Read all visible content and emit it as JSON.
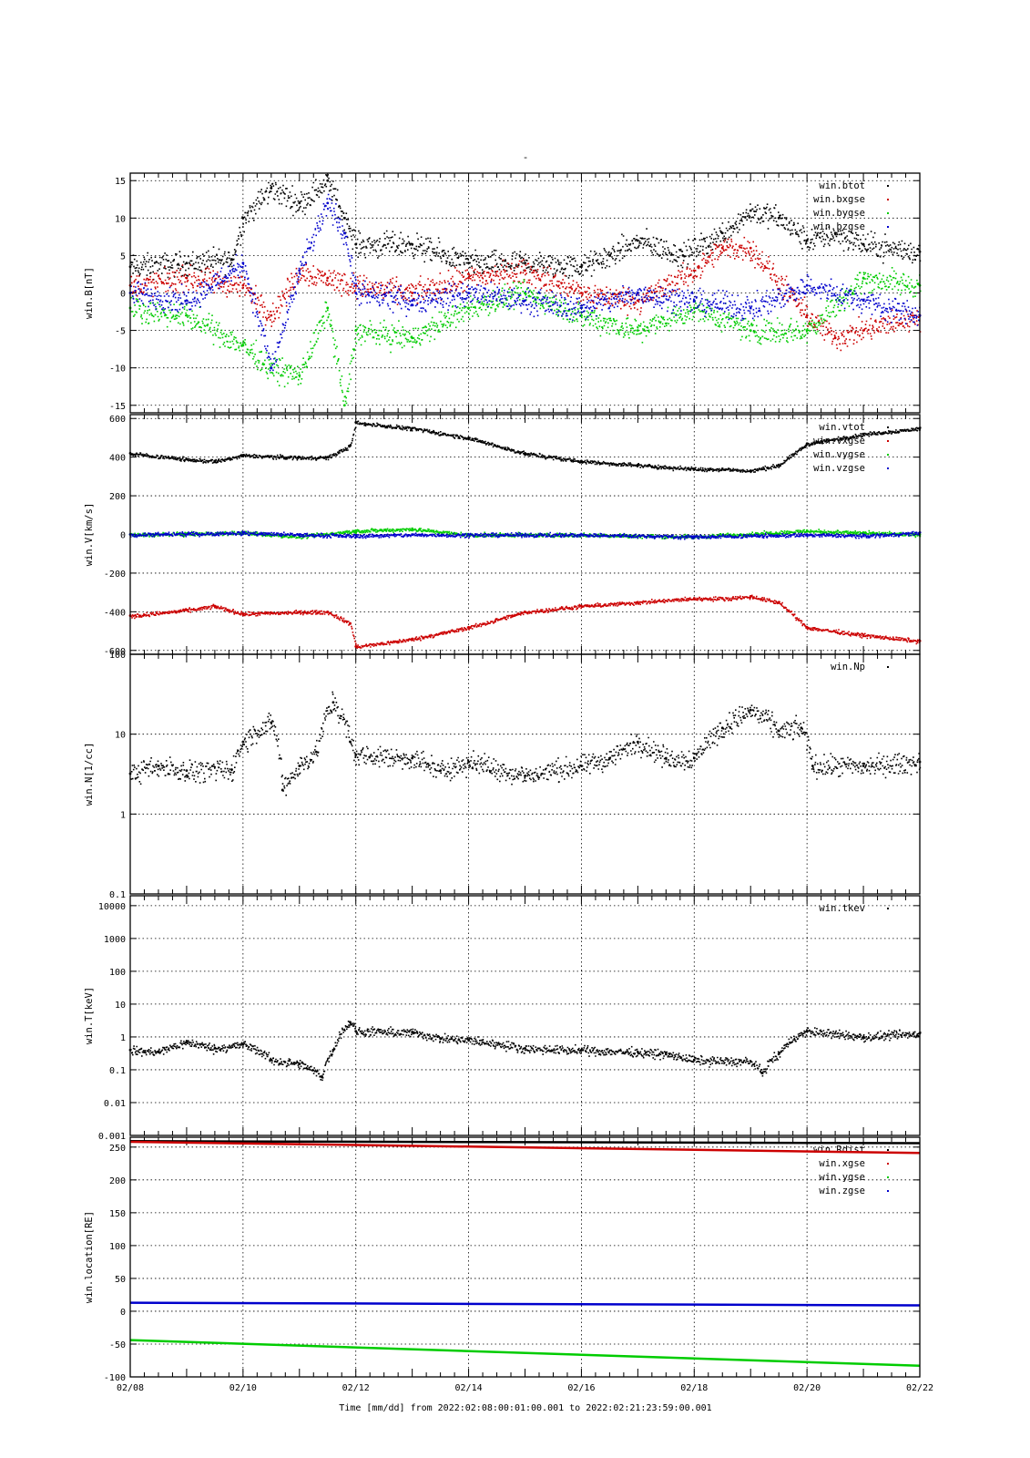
{
  "title": "-",
  "x_axis": {
    "ticks": [
      "02/08",
      "02/10",
      "02/12",
      "02/14",
      "02/16",
      "02/18",
      "02/20",
      "02/22"
    ],
    "label": "Time [mm/dd]  from 2022:02:08:00:01:00.001  to  2022:02:21:23:59:00.001"
  },
  "chart_data": [
    {
      "type": "scatter",
      "ylabel": "win.B[nT]",
      "ylim": [
        -16,
        16
      ],
      "yticks": [
        "15",
        "10",
        "5",
        "0",
        "-5",
        "-10",
        "-15"
      ],
      "ytick_values": [
        15,
        10,
        5,
        0,
        -5,
        -10,
        -15
      ],
      "grid": true,
      "legend_position": "top-right",
      "series": [
        {
          "name": "win.btot",
          "color": "#000000",
          "x": [
            8,
            9,
            9.8,
            10,
            10.5,
            11,
            11.5,
            11.8,
            12,
            13,
            14,
            15,
            16,
            16.5,
            17,
            17.8,
            18.5,
            19,
            19.5,
            20,
            20.5,
            21,
            22
          ],
          "y": [
            3.5,
            4,
            4.5,
            10,
            14,
            12,
            15,
            10,
            6.5,
            6.5,
            4,
            4,
            3.5,
            5,
            7,
            5,
            8,
            11,
            10,
            7,
            8,
            6.5,
            5.5
          ]
        },
        {
          "name": "win.bxgse",
          "color": "#cc0000",
          "x": [
            8,
            9,
            10,
            10.5,
            11,
            11.5,
            12,
            13,
            14,
            15,
            16,
            17,
            18,
            18.5,
            19,
            20,
            20.5,
            21,
            22
          ],
          "y": [
            1,
            2,
            1,
            -3,
            3,
            2,
            1,
            0,
            2,
            3,
            0,
            -1,
            3,
            6,
            6,
            -3,
            -6,
            -5,
            -3
          ]
        },
        {
          "name": "win.bygse",
          "color": "#00cc00",
          "x": [
            8,
            9,
            10,
            10.5,
            11,
            11.5,
            11.8,
            12,
            13,
            14,
            15,
            16,
            17,
            18,
            19,
            20,
            21,
            22
          ],
          "y": [
            -2,
            -3,
            -7,
            -10,
            -11,
            -2,
            -15,
            -5,
            -6,
            -2,
            0,
            -3,
            -5,
            -2,
            -5,
            -5,
            2,
            1
          ]
        },
        {
          "name": "win.bzgse",
          "color": "#0000cc",
          "x": [
            8,
            9,
            10,
            10.5,
            11,
            11.5,
            11.8,
            12,
            13,
            14,
            15,
            16,
            17,
            18,
            19,
            20,
            21,
            22
          ],
          "y": [
            0,
            -1,
            4,
            -10,
            3,
            12,
            8,
            0,
            -1,
            0,
            -1,
            -2,
            0,
            -1,
            -2,
            1,
            -1,
            -3
          ]
        }
      ]
    },
    {
      "type": "scatter",
      "ylabel": "win.V[km/s]",
      "ylim": [
        -620,
        620
      ],
      "yticks": [
        "600",
        "400",
        "200",
        "0",
        "-200",
        "-400",
        "-600"
      ],
      "ytick_values": [
        600,
        400,
        200,
        0,
        -200,
        -400,
        -600
      ],
      "grid": true,
      "legend_position": "top-right",
      "series": [
        {
          "name": "win.vtot",
          "color": "#000000",
          "x": [
            8,
            9,
            9.5,
            10,
            10.5,
            11,
            11.5,
            11.9,
            12,
            13,
            14,
            15,
            16,
            17,
            18,
            18.5,
            19,
            19.5,
            20,
            21,
            22
          ],
          "y": [
            420,
            390,
            380,
            410,
            405,
            400,
            400,
            460,
            580,
            550,
            500,
            420,
            380,
            360,
            340,
            340,
            330,
            360,
            470,
            520,
            550
          ]
        },
        {
          "name": "win.vxgse",
          "color": "#cc0000",
          "x": [
            8,
            9,
            9.5,
            10,
            10.5,
            11,
            11.5,
            11.9,
            12,
            13,
            14,
            15,
            16,
            17,
            18,
            18.5,
            19,
            19.5,
            20,
            21,
            22
          ],
          "y": [
            -420,
            -390,
            -370,
            -410,
            -405,
            -400,
            -400,
            -460,
            -580,
            -540,
            -480,
            -400,
            -370,
            -350,
            -330,
            -330,
            -320,
            -350,
            -480,
            -520,
            -550
          ]
        },
        {
          "name": "win.vygse",
          "color": "#00cc00",
          "x": [
            8,
            10,
            11,
            12,
            13,
            14,
            16,
            18,
            20,
            21,
            22
          ],
          "y": [
            0,
            10,
            -10,
            20,
            30,
            0,
            0,
            -10,
            20,
            10,
            0
          ]
        },
        {
          "name": "win.vzgse",
          "color": "#0000cc",
          "x": [
            8,
            10,
            11,
            12,
            13,
            14,
            16,
            18,
            20,
            21,
            22
          ],
          "y": [
            0,
            10,
            0,
            -5,
            0,
            0,
            0,
            -10,
            0,
            -5,
            10
          ]
        }
      ]
    },
    {
      "type": "scatter",
      "ylabel": "win.N[1/cc]",
      "yscale": "log",
      "ylim": [
        0.1,
        100
      ],
      "yticks": [
        "100",
        "10",
        "1",
        "0.1"
      ],
      "ytick_values": [
        100,
        10,
        1,
        0.1
      ],
      "grid": true,
      "legend_position": "top-right",
      "series": [
        {
          "name": "win.Np",
          "color": "#000000",
          "x": [
            8,
            8.5,
            9,
            9.8,
            10,
            10.5,
            10.7,
            11,
            11.3,
            11.6,
            11.9,
            12,
            13,
            13.5,
            14,
            15,
            16,
            16.5,
            17,
            17.5,
            18,
            18.5,
            19,
            19.5,
            19.9,
            20.1,
            21,
            22
          ],
          "y": [
            3.2,
            4,
            3.5,
            3.6,
            8,
            14,
            2,
            4,
            6,
            25,
            8,
            5.5,
            5,
            3.5,
            4.5,
            3,
            4,
            5,
            8,
            5,
            5,
            12,
            20,
            11,
            12,
            4,
            4,
            4.5
          ]
        }
      ]
    },
    {
      "type": "scatter",
      "ylabel": "win.T[keV]",
      "yscale": "log",
      "ylim": [
        0.001,
        20000
      ],
      "yticks": [
        "10000",
        "1000",
        "100",
        "10",
        "1",
        "0.1",
        "0.01",
        "0.001"
      ],
      "ytick_values": [
        10000,
        1000,
        100,
        10,
        1,
        0.1,
        0.01,
        0.001
      ],
      "grid": true,
      "legend_position": "top-right",
      "series": [
        {
          "name": "win.tkev",
          "color": "#000000",
          "x": [
            8,
            8.5,
            9,
            9.5,
            10,
            10.5,
            11,
            11.4,
            11.6,
            11.9,
            12,
            13,
            13.5,
            14,
            15,
            16,
            17,
            17.5,
            18,
            19,
            19.2,
            19.5,
            20,
            21,
            22
          ],
          "y": [
            0.4,
            0.35,
            0.7,
            0.45,
            0.6,
            0.2,
            0.15,
            0.06,
            0.4,
            2.8,
            1.5,
            1.4,
            0.9,
            0.8,
            0.45,
            0.4,
            0.35,
            0.3,
            0.2,
            0.18,
            0.08,
            0.3,
            1.5,
            1,
            1.3
          ]
        }
      ]
    },
    {
      "type": "line",
      "ylabel": "win.location[RE]",
      "ylim": [
        -100,
        265
      ],
      "yticks": [
        "250",
        "200",
        "150",
        "100",
        "50",
        "0",
        "-50",
        "-100"
      ],
      "ytick_values": [
        250,
        200,
        150,
        100,
        50,
        0,
        -50,
        -100
      ],
      "grid": true,
      "legend_position": "top-right",
      "series": [
        {
          "name": "win.Rdist",
          "color": "#000000",
          "x": [
            8,
            22
          ],
          "y": [
            259,
            256
          ]
        },
        {
          "name": "win.xgse",
          "color": "#cc0000",
          "x": [
            8,
            22
          ],
          "y": [
            258,
            241
          ]
        },
        {
          "name": "win.ygse",
          "color": "#00cc00",
          "x": [
            8,
            22
          ],
          "y": [
            -44,
            -83
          ]
        },
        {
          "name": "win.zgse",
          "color": "#0000cc",
          "x": [
            8,
            22
          ],
          "y": [
            13,
            9
          ]
        }
      ]
    }
  ]
}
